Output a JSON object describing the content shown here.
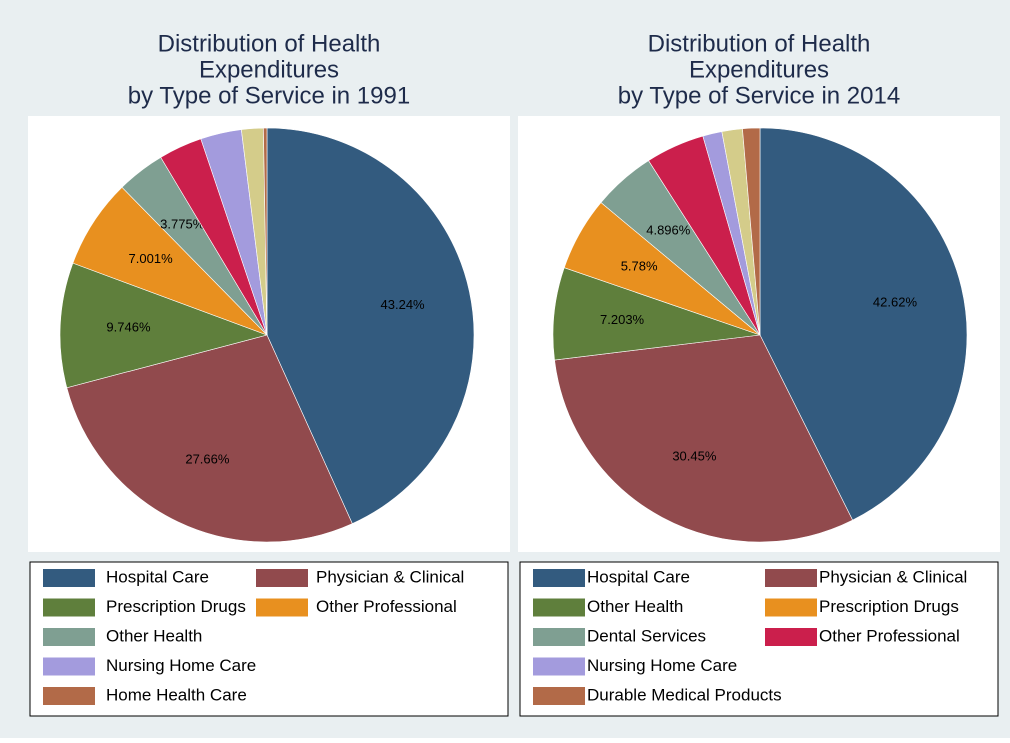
{
  "chart_data": [
    {
      "type": "pie",
      "title": [
        "Distribution of Health",
        "Expenditures",
        "by Type of Service in 1991"
      ],
      "categories": [
        "Hospital Care",
        "Physician & Clinical",
        "Prescription Drugs",
        "Other Professional",
        "Other Health",
        null,
        "Nursing Home Care",
        null,
        "Home Health Care"
      ],
      "values": [
        43.24,
        27.66,
        9.746,
        7.001,
        3.775,
        3.4,
        3.2,
        1.7,
        0.278
      ],
      "value_labels": [
        "43.24%",
        "27.66%",
        "9.746%",
        "7.001%",
        "3.775%",
        null,
        null,
        null,
        null
      ],
      "colors": [
        "#335b7f",
        "#914a4d",
        "#5f7f3c",
        "#e8901f",
        "#7f9f92",
        "#cb1f4c",
        "#a39bdd",
        "#d4cc8a",
        "#b26a48"
      ]
    },
    {
      "type": "pie",
      "title": [
        "Distribution of Health",
        "Expenditures",
        "by Type of Service in 2014"
      ],
      "categories": [
        "Hospital Care",
        "Physician & Clinical",
        "Other Health",
        "Prescription Drugs",
        "Dental Services",
        "Other Professional",
        "Nursing Home Care",
        null,
        "Durable Medical Products"
      ],
      "values": [
        42.62,
        30.45,
        7.203,
        5.78,
        4.896,
        4.6,
        1.5,
        1.6,
        1.351
      ],
      "value_labels": [
        "42.62%",
        "30.45%",
        "7.203%",
        "5.78%",
        "4.896%",
        null,
        null,
        null,
        null
      ],
      "colors": [
        "#335b7f",
        "#914a4d",
        "#5f7f3c",
        "#e8901f",
        "#7f9f92",
        "#cb1f4c",
        "#a39bdd",
        "#d4cc8a",
        "#b26a48"
      ]
    }
  ]
}
